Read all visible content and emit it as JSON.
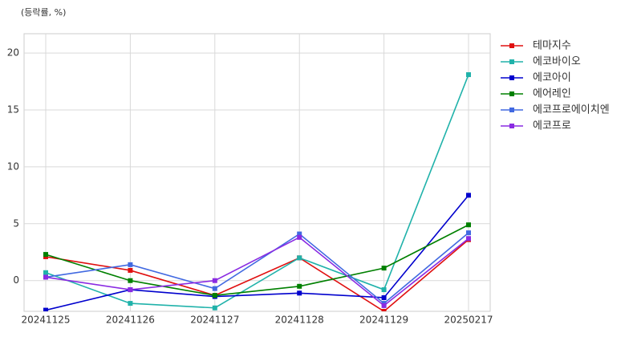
{
  "chart_data": {
    "type": "line",
    "subtitle": "(등락률, %)",
    "categories": [
      "20241125",
      "20241126",
      "20241127",
      "20241128",
      "20241129",
      "20250217"
    ],
    "series": [
      {
        "name": "테마지수",
        "color": "#e01010",
        "values": [
          2.1,
          0.9,
          -1.3,
          2.0,
          -2.7,
          3.6
        ]
      },
      {
        "name": "에코바이오",
        "color": "#20b2aa",
        "values": [
          0.7,
          -2.0,
          -2.4,
          2.0,
          -0.8,
          18.1
        ]
      },
      {
        "name": "에코아이",
        "color": "#0000cd",
        "values": [
          -2.6,
          -0.8,
          -1.4,
          -1.1,
          -1.5,
          7.5
        ]
      },
      {
        "name": "에어레인",
        "color": "#008000",
        "values": [
          2.3,
          0.0,
          -1.3,
          -0.5,
          1.1,
          4.9
        ]
      },
      {
        "name": "에코프로에이치엔",
        "color": "#4169e1",
        "values": [
          0.3,
          1.4,
          -0.7,
          4.1,
          -2.0,
          4.2
        ]
      },
      {
        "name": "에코프로",
        "color": "#8a2be2",
        "values": [
          0.3,
          -0.8,
          0.0,
          3.8,
          -2.2,
          3.7
        ]
      }
    ],
    "ylim": [
      -2.7,
      21.7
    ],
    "yticks": [
      0,
      5,
      10,
      15,
      20
    ],
    "grid": true,
    "legend": "outside-right"
  }
}
